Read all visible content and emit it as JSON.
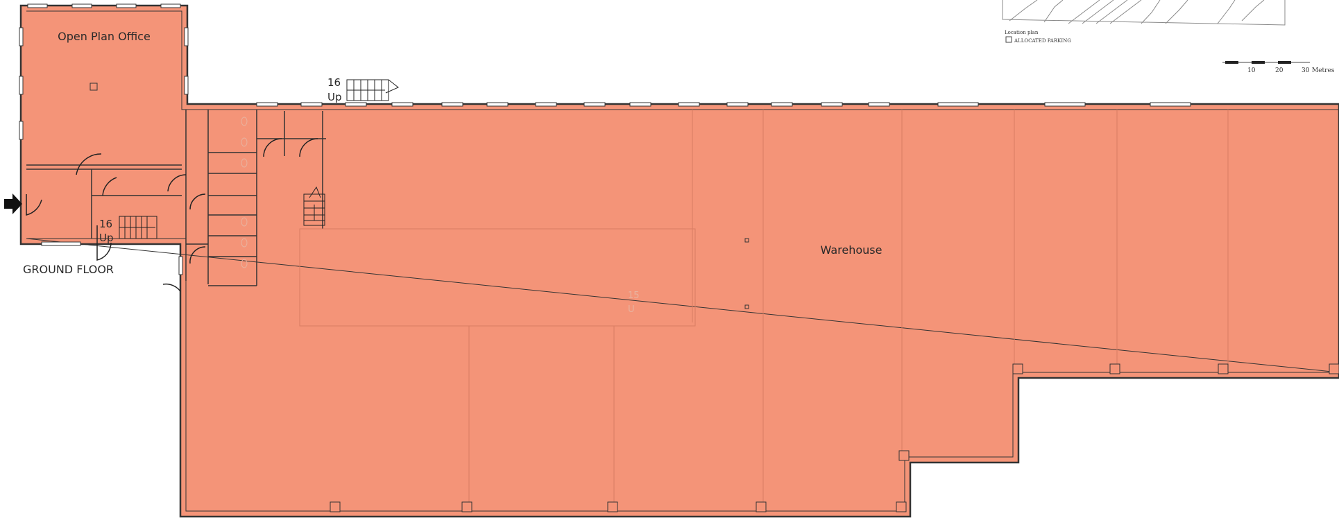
{
  "labels": {
    "office": "Open Plan Office",
    "warehouse": "Warehouse",
    "floor": "GROUND FLOOR",
    "stair_top_count": "16",
    "stair_top_dir": "Up",
    "stair_left_count": "16",
    "stair_left_dir": "Up",
    "faint_count": "15",
    "faint_dir": "U"
  },
  "location_plan": {
    "title": "Location plan",
    "legend_item": "ALLOCATED PARKING"
  },
  "scale_bar": {
    "ticks": [
      "10",
      "20",
      "30"
    ],
    "unit": "Metres"
  },
  "colors": {
    "floor_fill": "#f49478",
    "wall": "#333333",
    "background": "#ffffff"
  },
  "icons": [
    "entrance-arrow-icon",
    "stair-icon",
    "door-swing-icon"
  ]
}
